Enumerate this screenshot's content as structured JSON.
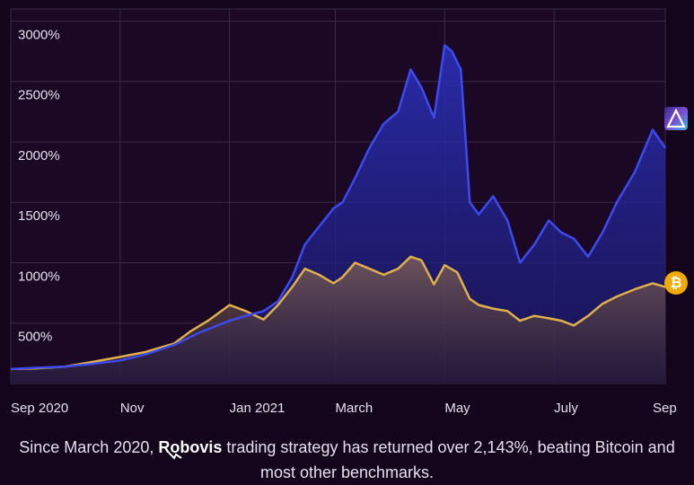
{
  "chart_data": {
    "type": "area",
    "title": "",
    "xlabel": "",
    "ylabel": "",
    "x_ticks": [
      "Sep 2020",
      "Nov",
      "Jan 2021",
      "March",
      "May",
      "July",
      "Sep"
    ],
    "y_ticks": [
      "500%",
      "1000%",
      "1500%",
      "2000%",
      "2500%",
      "3000%"
    ],
    "ylim": [
      0,
      3100
    ],
    "grid": true,
    "legend": "none",
    "series": [
      {
        "icon": "robovis-logo-icon",
        "color": "#3d4af0",
        "x": [
          "2020-09-01",
          "2020-09-15",
          "2020-10-01",
          "2020-10-15",
          "2020-11-01",
          "2020-11-15",
          "2020-12-01",
          "2020-12-15",
          "2021-01-01",
          "2021-01-10",
          "2021-01-20",
          "2021-01-28",
          "2021-02-05",
          "2021-02-12",
          "2021-02-20",
          "2021-02-28",
          "2021-03-05",
          "2021-03-12",
          "2021-03-20",
          "2021-03-28",
          "2021-04-05",
          "2021-04-12",
          "2021-04-18",
          "2021-04-25",
          "2021-05-01",
          "2021-05-05",
          "2021-05-10",
          "2021-05-15",
          "2021-05-20",
          "2021-05-28",
          "2021-06-05",
          "2021-06-12",
          "2021-06-20",
          "2021-06-28",
          "2021-07-05",
          "2021-07-12",
          "2021-07-20",
          "2021-07-28",
          "2021-08-05",
          "2021-08-15",
          "2021-08-25",
          "2021-09-01"
        ],
        "values": [
          120,
          130,
          140,
          160,
          190,
          240,
          320,
          420,
          520,
          560,
          600,
          680,
          880,
          1150,
          1300,
          1450,
          1500,
          1700,
          1950,
          2150,
          2250,
          2600,
          2450,
          2200,
          2800,
          2750,
          2600,
          1500,
          1400,
          1550,
          1350,
          1000,
          1150,
          1350,
          1250,
          1200,
          1050,
          1250,
          1500,
          1750,
          2100,
          1950
        ]
      },
      {
        "icon": "bitcoin-icon",
        "color": "#e0b04a",
        "x": [
          "2020-09-01",
          "2020-09-15",
          "2020-10-01",
          "2020-10-15",
          "2020-11-01",
          "2020-11-15",
          "2020-12-01",
          "2020-12-10",
          "2020-12-20",
          "2021-01-01",
          "2021-01-10",
          "2021-01-20",
          "2021-01-28",
          "2021-02-05",
          "2021-02-12",
          "2021-02-20",
          "2021-02-28",
          "2021-03-05",
          "2021-03-12",
          "2021-03-20",
          "2021-03-28",
          "2021-04-05",
          "2021-04-12",
          "2021-04-18",
          "2021-04-25",
          "2021-05-01",
          "2021-05-08",
          "2021-05-15",
          "2021-05-20",
          "2021-05-28",
          "2021-06-05",
          "2021-06-12",
          "2021-06-20",
          "2021-06-28",
          "2021-07-05",
          "2021-07-12",
          "2021-07-20",
          "2021-07-28",
          "2021-08-05",
          "2021-08-15",
          "2021-08-25",
          "2021-09-01"
        ],
        "values": [
          120,
          125,
          140,
          175,
          220,
          260,
          330,
          430,
          520,
          650,
          600,
          530,
          650,
          800,
          950,
          900,
          830,
          880,
          1000,
          950,
          900,
          950,
          1050,
          1020,
          820,
          980,
          920,
          700,
          650,
          620,
          600,
          520,
          560,
          540,
          520,
          480,
          560,
          660,
          720,
          780,
          830,
          800
        ]
      }
    ]
  },
  "caption": {
    "before": "Since March 2020, ",
    "brand": "Robovis",
    "after": " trading strategy has returned over 2,143%, beating Bitcoin and most other benchmarks."
  },
  "icons": {
    "bitcoin_symbol": "₿"
  }
}
